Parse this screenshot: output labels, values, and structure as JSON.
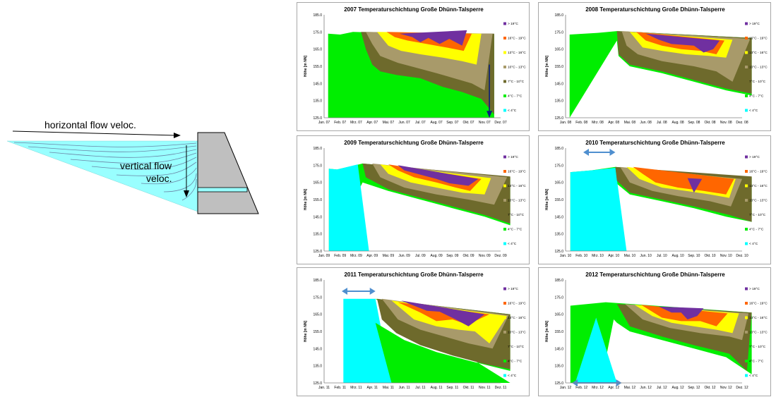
{
  "schematic": {
    "horizontal_label": "horizontal flow veloc.",
    "vertical_label_line1": "vertical flow",
    "vertical_label_line2": "veloc."
  },
  "legend": [
    "> 19°C",
    "16°C - 19°C",
    "13°C - 16°C",
    "10°C - 13°C",
    "7°C - 10°C",
    "4°C - 7°C",
    "< 4°C"
  ],
  "colors": {
    "gt19": "#7030a0",
    "c16_19": "#ff6600",
    "c13_16": "#ffff00",
    "c10_13": "#a89a6a",
    "c7_10": "#6e6a2c",
    "c4_7": "#00ee00",
    "lt4": "#00ffff",
    "schematic_water": "#99ffff",
    "dam": "#bfbfbf",
    "arrow_blue": "#4f8fcf"
  },
  "y_axis": {
    "label": "Höhe [m NN]",
    "ticks": [
      "185.0",
      "175.0",
      "165.0",
      "155.0",
      "145.0",
      "135.0",
      "125.0"
    ]
  },
  "chart_data": [
    {
      "type": "area",
      "title": "2007 Temperaturschichtung Große Dhünn-Talsperre",
      "x_ticks": [
        "Jan. 07",
        "Feb. 07",
        "Mrz. 07",
        "Apr. 07",
        "Mai. 07",
        "Jun. 07",
        "Jul. 07",
        "Aug. 07",
        "Sep. 07",
        "Okt. 07",
        "Nov. 07",
        "Dez. 07"
      ],
      "ylabel": "Höhe [m NN]",
      "ylim": [
        125,
        185
      ]
    },
    {
      "type": "area",
      "title": "2008 Temperaturschichtung Große Dhünn-Talsperre",
      "x_ticks": [
        "Jan. 08",
        "Feb. 08",
        "Mrz. 08",
        "Apr. 08",
        "Mai. 08",
        "Jun. 08",
        "Jul. 08",
        "Aug. 08",
        "Sep. 08",
        "Okt. 08",
        "Nov. 08",
        "Dez. 08"
      ],
      "ylabel": "Höhe [m NN]",
      "ylim": [
        125,
        185
      ]
    },
    {
      "type": "area",
      "title": "2009 Temperaturschichtung Große Dhünn-Talsperre",
      "x_ticks": [
        "Jan. 09",
        "Feb. 09",
        "Mrz. 09",
        "Apr. 09",
        "Mai. 09",
        "Jun. 09",
        "Jul. 09",
        "Aug. 09",
        "Sep. 09",
        "Okt. 09",
        "Nov. 09",
        "Dez. 09"
      ],
      "ylabel": "Höhe [m NN]",
      "ylim": [
        125,
        185
      ]
    },
    {
      "type": "area",
      "title": "2010 Temperaturschichtung Große Dhünn-Talsperre",
      "x_ticks": [
        "Jan. 10",
        "Feb. 10",
        "Mrz. 10",
        "Apr. 10",
        "Mai. 10",
        "Jun. 10",
        "Jul. 10",
        "Aug. 10",
        "Sep. 10",
        "Okt. 10",
        "Nov. 10",
        "Dez. 10"
      ],
      "ylabel": "Höhe [m NN]",
      "ylim": [
        125,
        185
      ]
    },
    {
      "type": "area",
      "title": "2011 Temperaturschichtung Große Dhünn-Talsperre",
      "x_ticks": [
        "Jan. 11",
        "Feb. 11",
        "Mrz. 11",
        "Apr. 11",
        "Mai. 11",
        "Jun. 11",
        "Jul. 11",
        "Aug. 11",
        "Sep. 11",
        "Okt. 11",
        "Nov. 11",
        "Dez. 11"
      ],
      "ylabel": "Höhe [m NN]",
      "ylim": [
        125,
        185
      ]
    },
    {
      "type": "area",
      "title": "2012 Temperaturschichtung Große Dhünn-Talsperre",
      "x_ticks": [
        "Jan. 12",
        "Feb. 12",
        "Mrz. 12",
        "Apr. 12",
        "Mai. 12",
        "Jun. 12",
        "Jul. 12",
        "Aug. 12",
        "Sep. 12",
        "Okt. 12",
        "Nov. 12",
        "Dez. 12"
      ],
      "ylabel": "Höhe [m NN]",
      "ylim": [
        125,
        185
      ]
    }
  ]
}
